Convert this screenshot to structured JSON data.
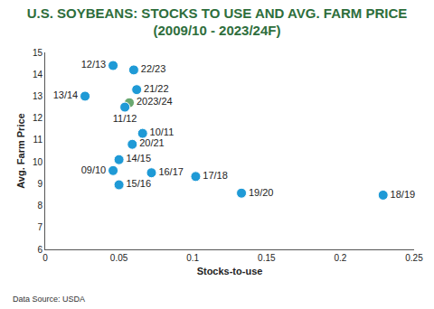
{
  "chart_data": {
    "type": "scatter",
    "title": "U.S. SOYBEANS: STOCKS TO USE AND AVG. FARM PRICE (2009/10 - 2023/24F)",
    "x_label": "Stocks-to-use",
    "y_label": "Avg. Farm Price",
    "annotations": [
      "Data Source: USDA"
    ],
    "labels": [
      "12/13",
      "22/23",
      "21/22",
      "13/14",
      "2023/24",
      "11/12",
      "10/11",
      "20/21",
      "14/15",
      "09/10",
      "16/17",
      "15/16",
      "17/18",
      "19/20",
      "18/19"
    ],
    "x": [
      0.046,
      0.06,
      0.062,
      0.027,
      0.057,
      0.054,
      0.066,
      0.059,
      0.05,
      0.046,
      0.072,
      0.05,
      0.102,
      0.133,
      0.229
    ],
    "values": [
      14.4,
      14.2,
      13.3,
      13.0,
      12.7,
      12.5,
      11.3,
      10.8,
      10.1,
      9.6,
      9.5,
      8.95,
      9.33,
      8.57,
      8.48
    ],
    "colors": [
      "#1f9ad6",
      "#1f9ad6",
      "#1f9ad6",
      "#1f9ad6",
      "#6aa870",
      "#1f9ad6",
      "#1f9ad6",
      "#1f9ad6",
      "#1f9ad6",
      "#1f9ad6",
      "#1f9ad6",
      "#1f9ad6",
      "#1f9ad6",
      "#1f9ad6",
      "#1f9ad6"
    ],
    "xlim": [
      0,
      0.25
    ],
    "xticks": [
      0,
      0.05,
      0.1,
      0.15,
      0.2,
      0.25
    ],
    "ylim": [
      6,
      15
    ],
    "yticks": [
      6,
      7,
      8,
      9,
      10,
      11,
      12,
      13,
      14,
      15
    ],
    "grid": false,
    "data_labels": true,
    "marker": "circle"
  }
}
